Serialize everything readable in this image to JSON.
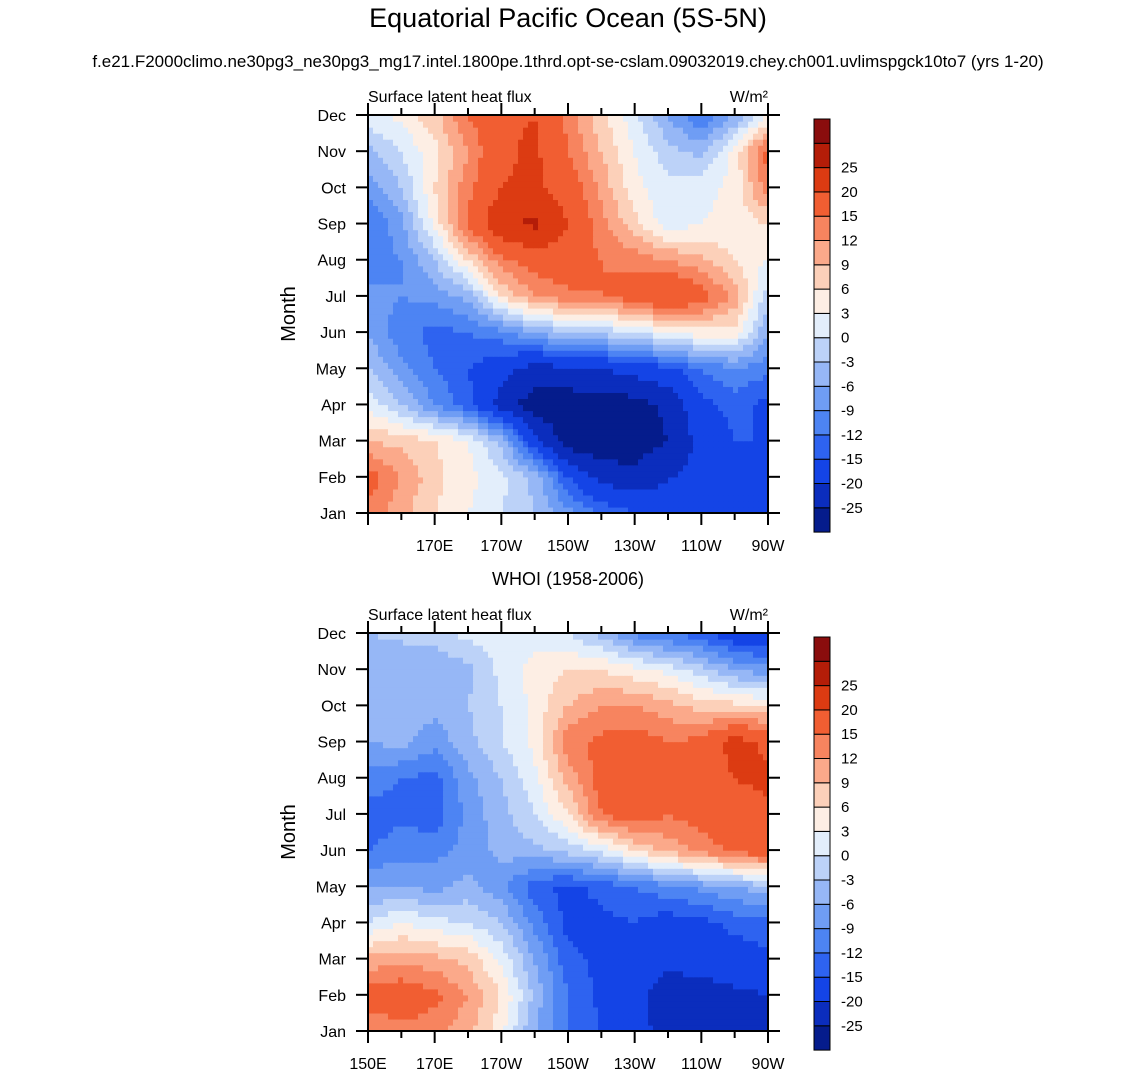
{
  "figure": {
    "title": "Equatorial Pacific Ocean (5S-5N)",
    "subtitle": "f.e21.F2000climo.ne30pg3_ne30pg3_mg17.intel.1800pe.1thrd.opt-se-cslam.09032019.chey.ch001.uvlimspgck10to7 (yrs 1-20)"
  },
  "colorbar": {
    "levels": [
      -25,
      -20,
      -15,
      -12,
      -9,
      -6,
      -3,
      0,
      3,
      6,
      9,
      12,
      15,
      20,
      25
    ],
    "labels": [
      "-25",
      "-20",
      "-15",
      "-12",
      "-9",
      "-6",
      "-3",
      "0",
      "3",
      "6",
      "9",
      "12",
      "15",
      "20",
      "25"
    ],
    "colors": [
      "#051c8c",
      "#0b2dbd",
      "#1444e6",
      "#2e63f0",
      "#4d84f3",
      "#6f9df4",
      "#96b7f6",
      "#bcd2f8",
      "#e3eefb",
      "#fdeee4",
      "#fcd0b9",
      "#fba98a",
      "#f7845f",
      "#f15e32",
      "#dc3b12",
      "#b41d08",
      "#8a0d0d"
    ]
  },
  "chart_data": [
    {
      "type": "heatmap",
      "title": "",
      "left_label": "Surface latent heat flux",
      "right_label": "W/m²",
      "ylabel": "Month",
      "xlabel": "",
      "x_ticks": [
        "",
        "170E",
        "170W",
        "150W",
        "130W",
        "110W",
        "90W"
      ],
      "x_range_deg_east": [
        150,
        270
      ],
      "y_ticks": [
        "Jan",
        "Feb",
        "Mar",
        "Apr",
        "May",
        "Jun",
        "Jul",
        "Aug",
        "Sep",
        "Oct",
        "Nov",
        "Dec"
      ],
      "x_grid_deg_east": [
        150,
        160,
        170,
        180,
        190,
        200,
        210,
        220,
        230,
        240,
        250,
        260,
        270
      ],
      "values": [
        [
          14,
          10,
          6,
          3,
          0,
          -3,
          -8,
          -12,
          -15,
          -18,
          -20,
          -20,
          -18
        ],
        [
          17,
          12,
          7,
          4,
          1,
          -4,
          -15,
          -22,
          -23,
          -20,
          -19,
          -18,
          -16
        ],
        [
          9,
          8,
          6,
          3,
          -4,
          -18,
          -28,
          -29,
          -28,
          -25,
          -18,
          -15,
          -15
        ],
        [
          2,
          -3,
          -9,
          -14,
          -22,
          -28,
          -28,
          -28,
          -27,
          -24,
          -16,
          -14,
          -16
        ],
        [
          -3,
          -8,
          -12,
          -15,
          -18,
          -22,
          -21,
          -20,
          -18,
          -16,
          -12,
          -9,
          -11
        ],
        [
          -6,
          -11,
          -13,
          -12,
          -10,
          -6,
          -3,
          -2,
          0,
          3,
          5,
          5,
          -6
        ],
        [
          -8,
          -9,
          -8,
          -5,
          6,
          12,
          14,
          15,
          17,
          21,
          17,
          11,
          -2
        ],
        [
          -11,
          -9,
          -3,
          6,
          14,
          17,
          18,
          15,
          14,
          12,
          10,
          6,
          3
        ],
        [
          -12,
          -7,
          4,
          16,
          24,
          26,
          20,
          13,
          7,
          1,
          3,
          4,
          6
        ],
        [
          -8,
          -3,
          6,
          14,
          20,
          21,
          18,
          11,
          4,
          1,
          2,
          4,
          14
        ],
        [
          -4,
          0,
          5,
          12,
          19,
          21,
          15,
          9,
          3,
          -2,
          -4,
          4,
          17
        ],
        [
          2,
          4,
          8,
          15,
          19,
          20,
          14,
          7,
          1,
          -6,
          -12,
          -6,
          3
        ]
      ]
    },
    {
      "type": "heatmap",
      "title": "WHOI (1958-2006)",
      "left_label": "Surface latent heat flux",
      "right_label": "W/m²",
      "ylabel": "Month",
      "xlabel": "",
      "x_ticks": [
        "150E",
        "170E",
        "170W",
        "150W",
        "130W",
        "110W",
        "90W"
      ],
      "x_range_deg_east": [
        150,
        270
      ],
      "y_ticks": [
        "Jan",
        "Feb",
        "Mar",
        "Apr",
        "May",
        "Jun",
        "Jul",
        "Aug",
        "Sep",
        "Oct",
        "Nov",
        "Dec"
      ],
      "x_grid_deg_east": [
        150,
        160,
        170,
        180,
        190,
        200,
        210,
        220,
        230,
        240,
        250,
        260,
        270
      ],
      "values": [
        [
          12,
          14,
          13,
          10,
          4,
          -6,
          -12,
          -15,
          -18,
          -22,
          -23,
          -24,
          -22
        ],
        [
          17,
          18,
          16,
          12,
          6,
          -4,
          -12,
          -16,
          -19,
          -22,
          -22,
          -21,
          -20
        ],
        [
          10,
          11,
          10,
          8,
          2,
          -6,
          -14,
          -16,
          -17,
          -19,
          -18,
          -17,
          -16
        ],
        [
          0,
          3,
          1,
          0,
          -3,
          -10,
          -16,
          -16,
          -15,
          -17,
          -16,
          -14,
          -13
        ],
        [
          -6,
          -6,
          -7,
          -5,
          -8,
          -14,
          -16,
          -14,
          -12,
          -10,
          -8,
          -6,
          -4
        ],
        [
          -12,
          -10,
          -10,
          -8,
          -5,
          -4,
          -2,
          1,
          6,
          10,
          13,
          16,
          18
        ],
        [
          -14,
          -13,
          -14,
          -8,
          -4,
          0,
          6,
          15,
          18,
          15,
          17,
          18,
          19
        ],
        [
          -10,
          -12,
          -13,
          -7,
          -3,
          2,
          10,
          17,
          19,
          15,
          18,
          20,
          21
        ],
        [
          -6,
          -5,
          -8,
          -4,
          0,
          4,
          14,
          16,
          17,
          15,
          16,
          22,
          19
        ],
        [
          -4,
          -3,
          -5,
          -3,
          0,
          4,
          9,
          12,
          12,
          10,
          8,
          7,
          6
        ],
        [
          -6,
          -6,
          -6,
          -4,
          1,
          4,
          6,
          6,
          4,
          2,
          -2,
          -6,
          -8
        ],
        [
          -3,
          -2,
          -1,
          1,
          2,
          2,
          0,
          -4,
          -10,
          -12,
          -14,
          -18,
          -20
        ]
      ]
    }
  ]
}
